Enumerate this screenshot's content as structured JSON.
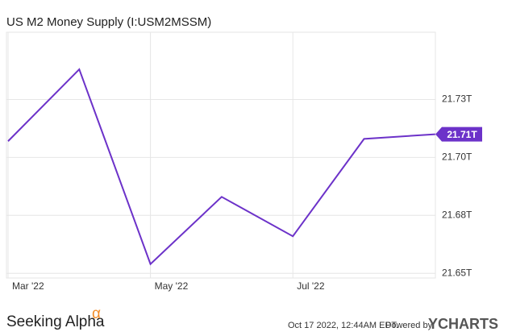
{
  "chart_data": {
    "type": "line",
    "title": "US M2 Money Supply (I:USM2MSSM)",
    "categories": [
      "Mar '22",
      null,
      "May '22",
      null,
      "Jul '22",
      null,
      null
    ],
    "series": [
      {
        "name": "US M2 Money Supply",
        "color": "#6c32c9",
        "values": [
          21.707,
          21.738,
          21.654,
          21.683,
          21.666,
          21.708,
          21.71
        ]
      }
    ],
    "last_value_label": "21.71T",
    "ylim": [
      21.648,
      21.754
    ],
    "yticks": [
      {
        "value": 21.65,
        "label": "21.65T"
      },
      {
        "value": 21.675,
        "label": "21.68T"
      },
      {
        "value": 21.7,
        "label": "21.70T"
      },
      {
        "value": 21.725,
        "label": "21.73T"
      }
    ],
    "grid": true
  },
  "footer": {
    "brand": "Seeking Alpha",
    "brand_mark": "α",
    "timestamp": "Oct 17 2022, 12:44AM EDT.",
    "powered": "Powered by",
    "provider": "YCHARTS"
  }
}
